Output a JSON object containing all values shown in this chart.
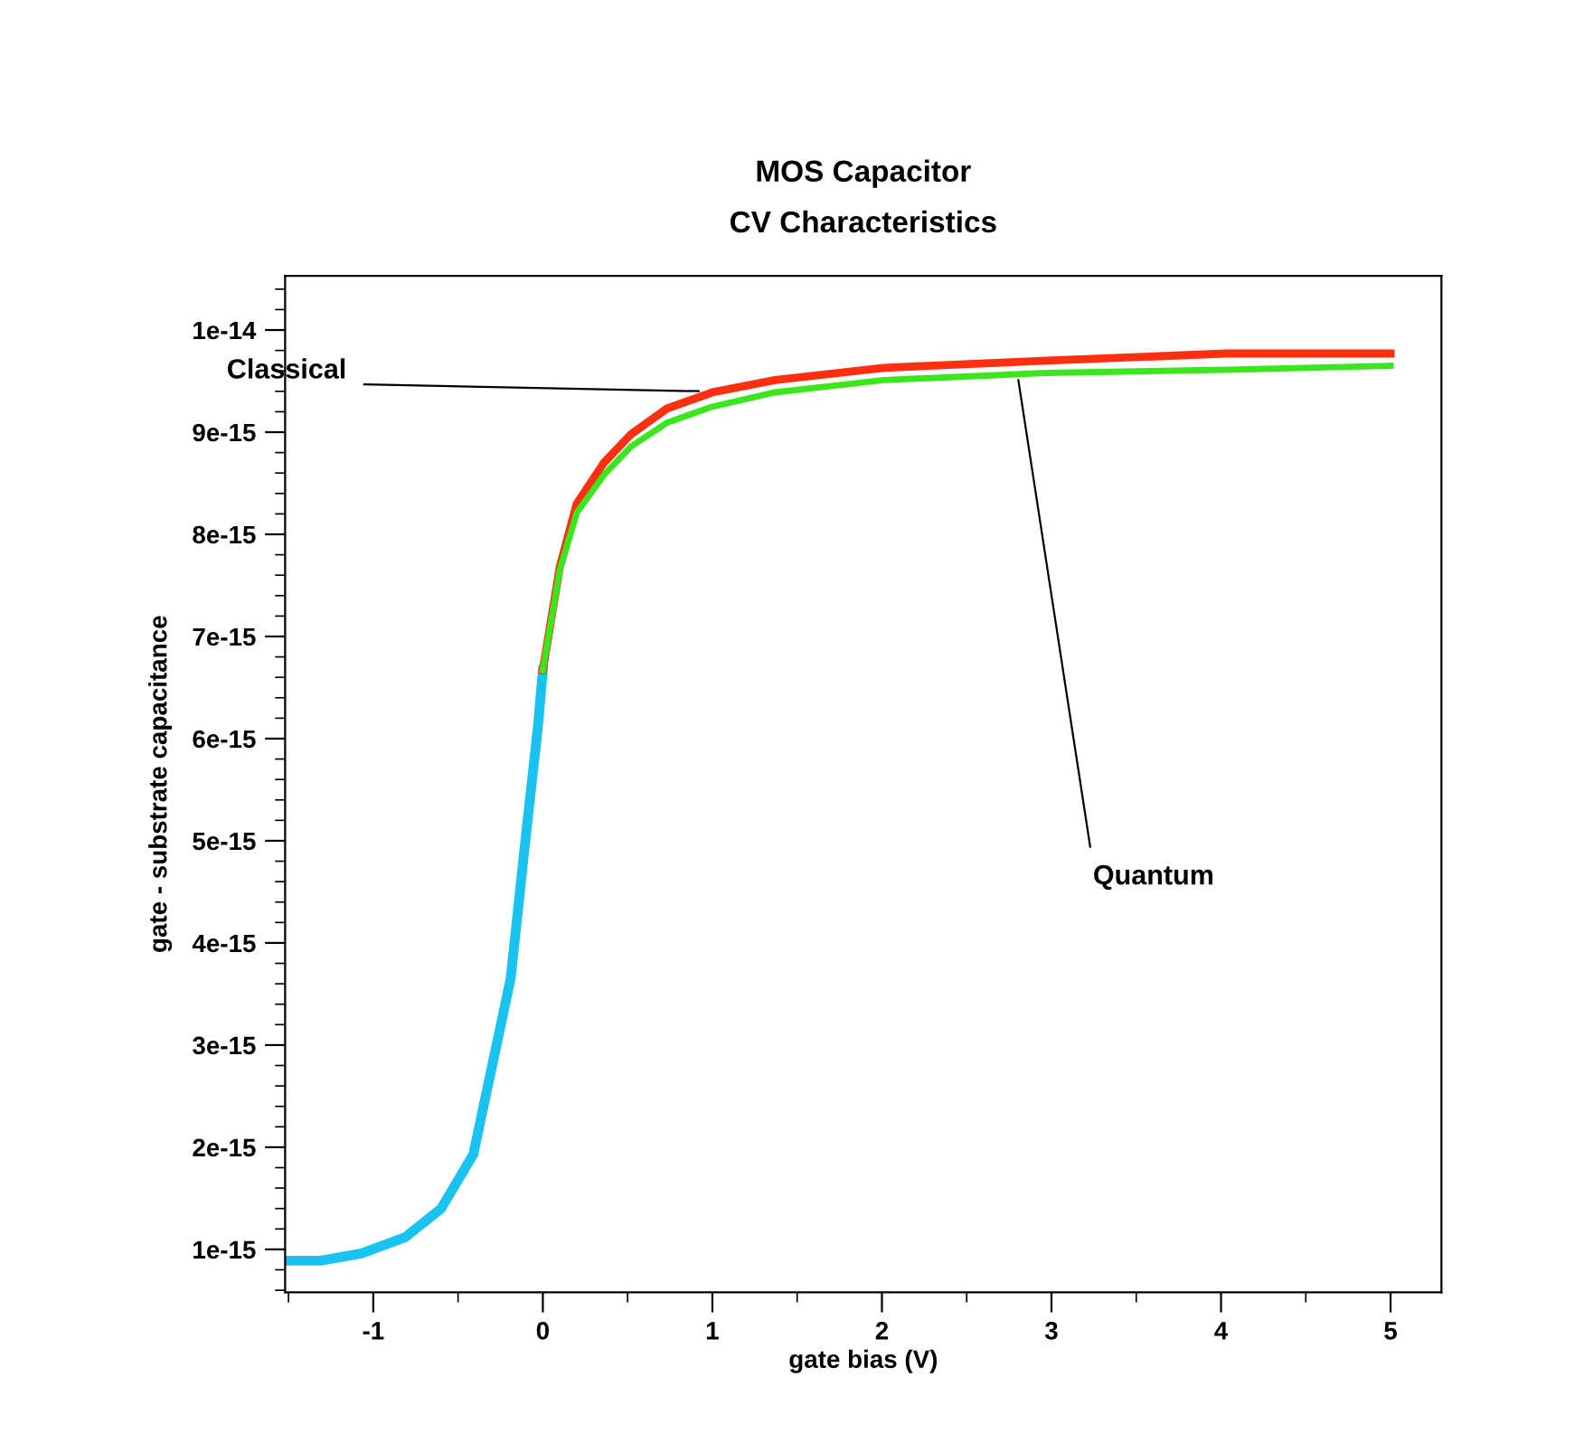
{
  "chart_data": {
    "type": "line",
    "title": "MOS Capacitor",
    "subtitle": "CV Characteristics",
    "xlabel": "gate bias (V)",
    "ylabel": "gate - substrate capacitance",
    "series": [
      {
        "color": "#19c3f0",
        "x": [
          -1.52,
          -1.31,
          -1.07,
          -0.81,
          -0.6,
          -0.41,
          -0.19,
          -0.1,
          -0.03,
          0
        ],
        "values": [
          8.9e-16,
          8.9e-16,
          9.6e-16,
          1.12e-15,
          1.4e-15,
          1.93e-15,
          3.65e-15,
          5.05e-15,
          6.1e-15,
          6.67e-15
        ]
      },
      {
        "color": "#ff3010",
        "x": [
          0,
          0.1,
          0.2,
          0.36,
          0.52,
          0.73,
          1,
          1.37,
          2.01,
          2.97,
          4.03,
          5
        ],
        "values": [
          6.67e-15,
          7.68e-15,
          8.3e-15,
          8.7e-15,
          8.98e-15,
          9.23e-15,
          9.39e-15,
          9.51e-15,
          9.63e-15,
          9.7e-15,
          9.77e-15,
          9.77e-15
        ]
      },
      {
        "color": "#3ce61e",
        "x": [
          0,
          0.1,
          0.2,
          0.36,
          0.52,
          0.73,
          1,
          1.37,
          2.01,
          2.97,
          4.03,
          5
        ],
        "values": [
          6.67e-15,
          7.65e-15,
          8.21e-15,
          8.58e-15,
          8.86e-15,
          9.09e-15,
          9.25e-15,
          9.39e-15,
          9.51e-15,
          9.58e-15,
          9.61e-15,
          9.65e-15
        ]
      }
    ],
    "annotations": [
      {
        "text": "Classical",
        "x": 0.95,
        "y": 9.4e-15
      },
      {
        "text": "Quantum",
        "x": 2.8,
        "y": 9.56e-15
      }
    ],
    "xlim": [
      -1.52,
      5.3
    ],
    "ylim": [
      5.8e-16,
      1.053e-14
    ],
    "xticks": [
      -1,
      0,
      1,
      2,
      3,
      4,
      5
    ],
    "yticks": [
      {
        "value": 1e-15,
        "label": "1e-15"
      },
      {
        "value": 2e-15,
        "label": "2e-15"
      },
      {
        "value": 3e-15,
        "label": "3e-15"
      },
      {
        "value": 4e-15,
        "label": "4e-15"
      },
      {
        "value": 5e-15,
        "label": "5e-15"
      },
      {
        "value": 6e-15,
        "label": "6e-15"
      },
      {
        "value": 7e-15,
        "label": "7e-15"
      },
      {
        "value": 8e-15,
        "label": "8e-15"
      },
      {
        "value": 9e-15,
        "label": "9e-15"
      },
      {
        "value": 1e-14,
        "label": "1e-14"
      }
    ],
    "grid": false,
    "marker": "none",
    "line_style": "solid"
  }
}
